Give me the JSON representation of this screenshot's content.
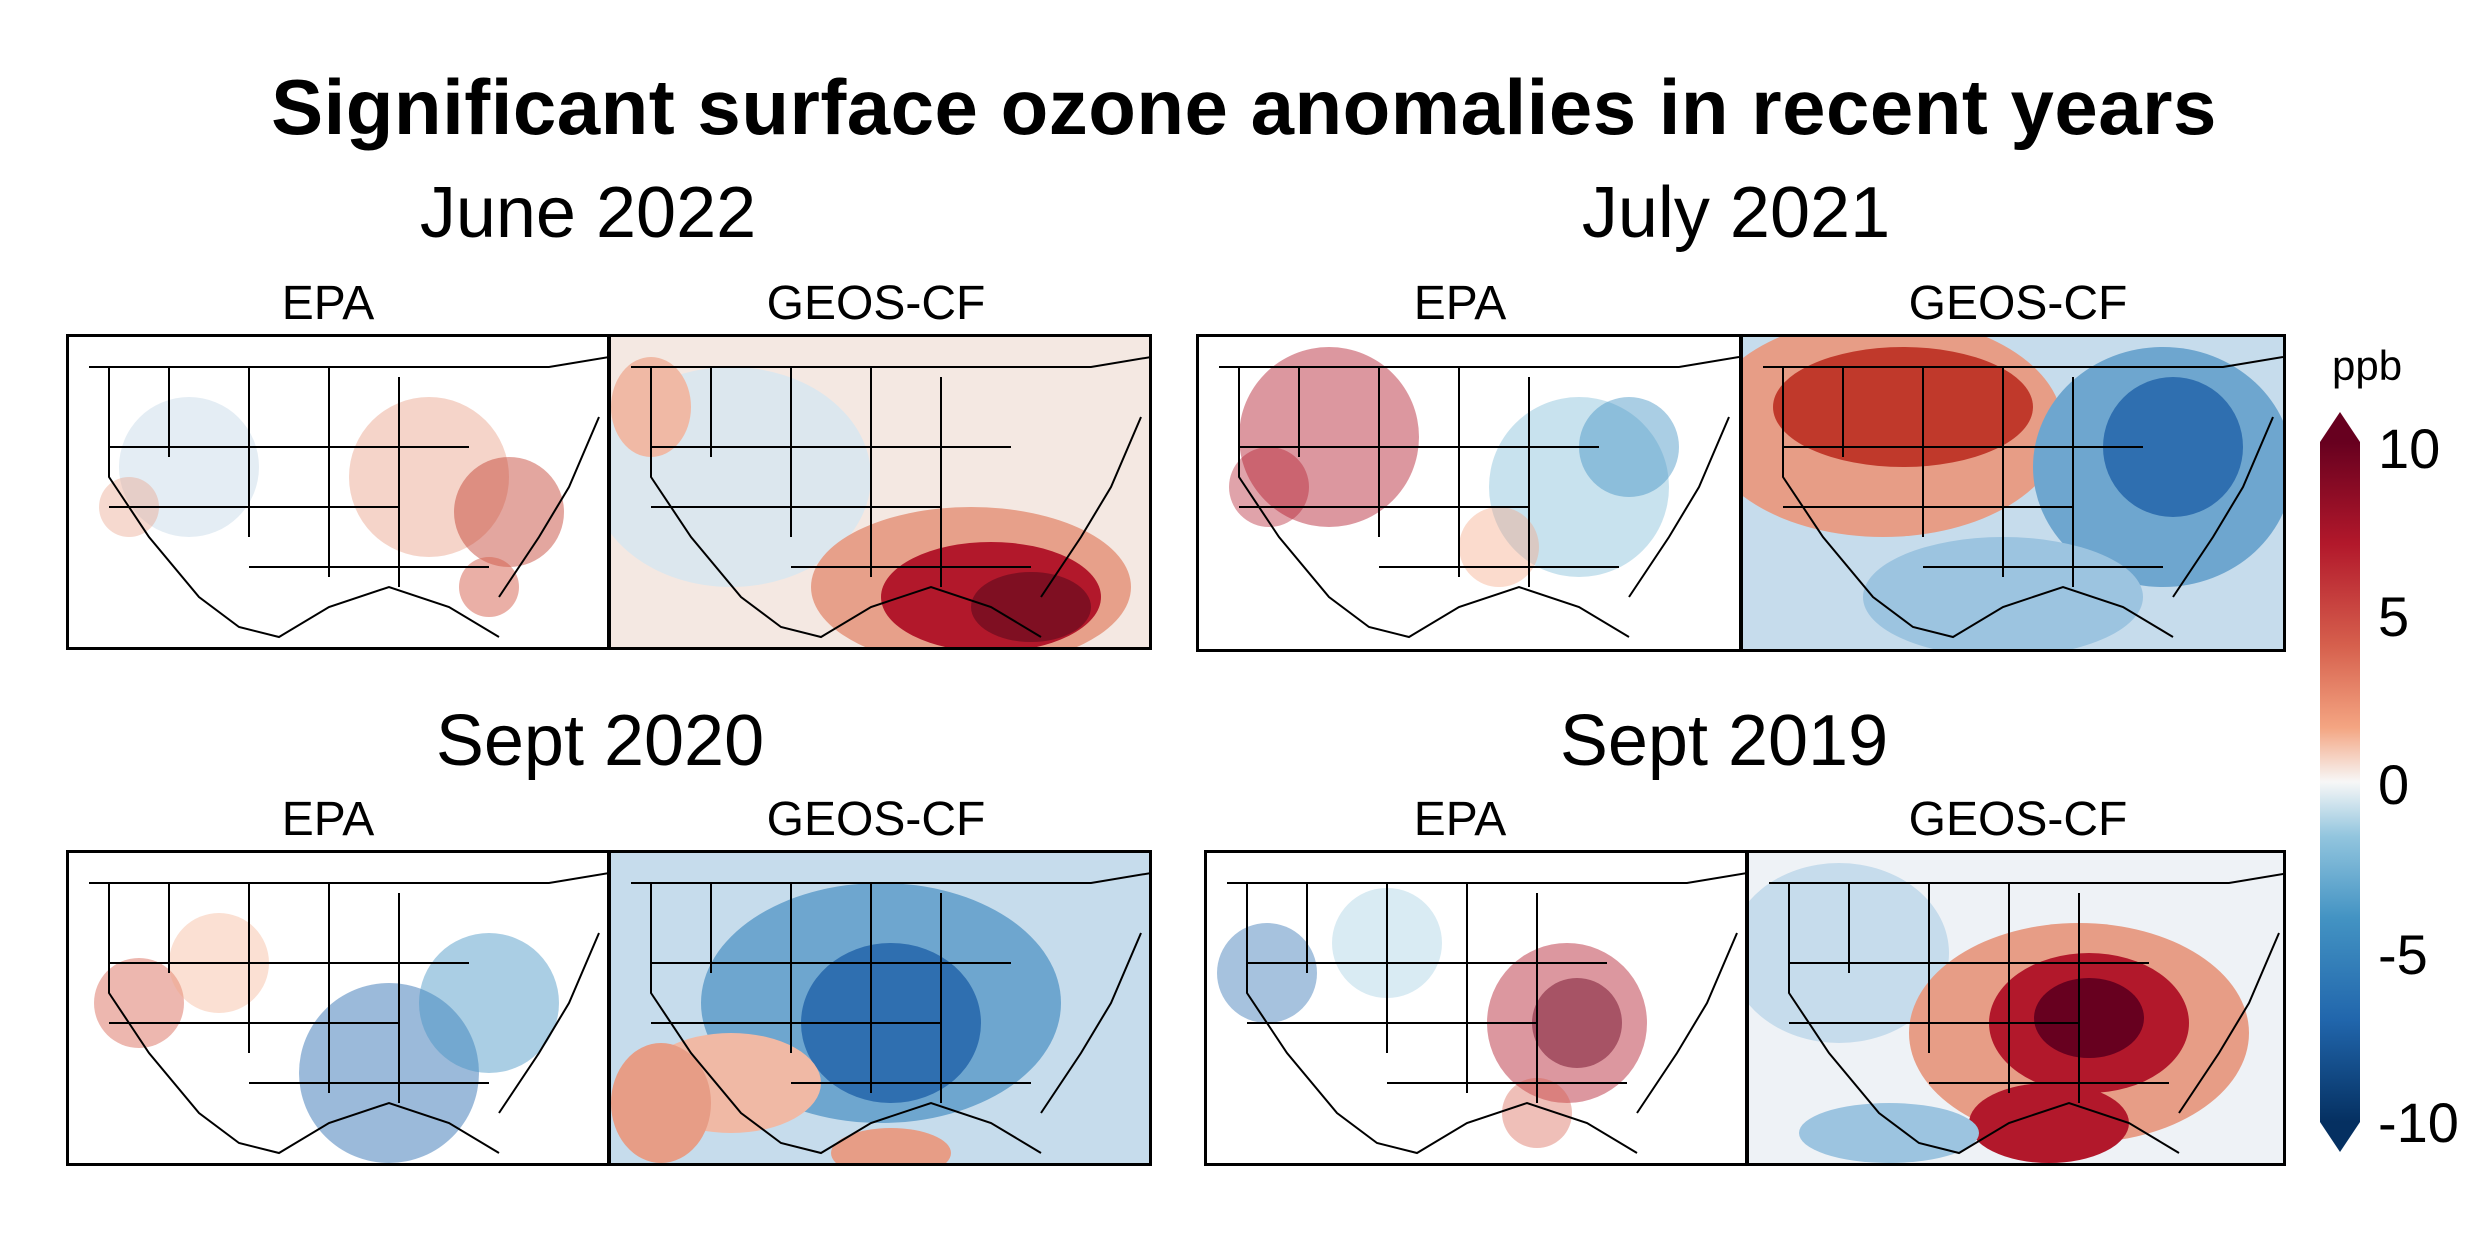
{
  "title": "Significant surface ozone anomalies in recent years",
  "panels": [
    {
      "period": "June 2022",
      "left_label": "EPA",
      "right_label": "GEOS-CF"
    },
    {
      "period": "July 2021",
      "left_label": "EPA",
      "right_label": "GEOS-CF"
    },
    {
      "period": "Sept 2020",
      "left_label": "EPA",
      "right_label": "GEOS-CF"
    },
    {
      "period": "Sept 2019",
      "left_label": "EPA",
      "right_label": "GEOS-CF"
    }
  ],
  "colorbar": {
    "unit": "ppb",
    "ticks": [
      "10",
      "5",
      "0",
      "-5",
      "-10"
    ],
    "colors": {
      "high": "#67001f",
      "mid": "#f7f7f7",
      "low": "#053061"
    }
  }
}
